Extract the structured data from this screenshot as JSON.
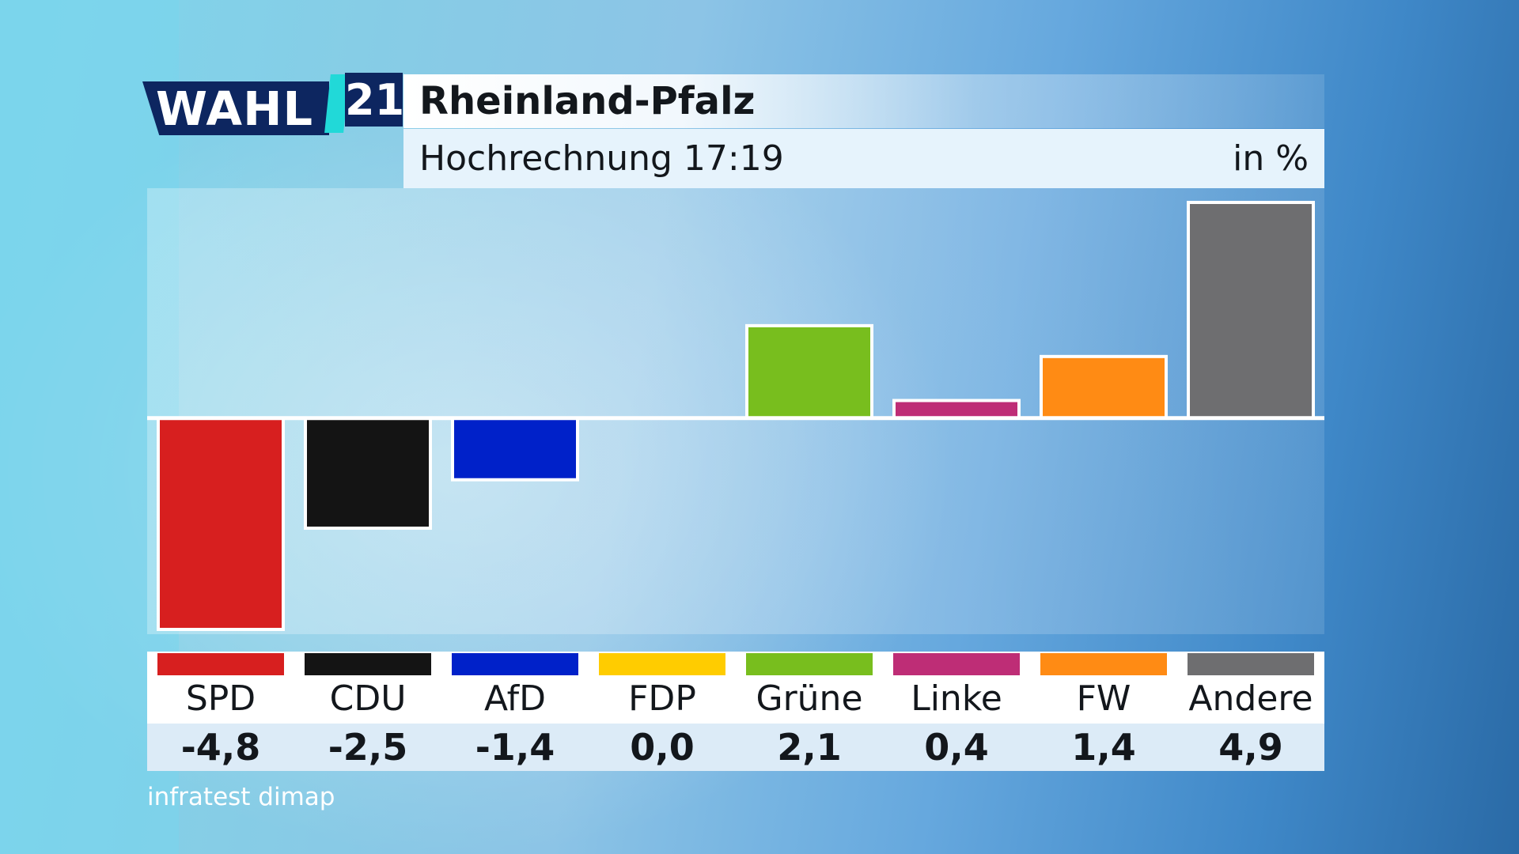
{
  "header": {
    "logo_text": "WAHL",
    "logo_year": "21",
    "title": "Rheinland-Pfalz",
    "subtitle": "Hochrechnung 17:19",
    "unit": "in %"
  },
  "source": "infratest dimap",
  "colors": {
    "logo_navy": "#0d2660",
    "logo_accent": "#21d9d8",
    "bar_border": "#ffffff",
    "baseline": "#ffffff"
  },
  "chart_data": {
    "type": "bar",
    "categories": [
      "SPD",
      "CDU",
      "AfD",
      "FDP",
      "Grüne",
      "Linke",
      "FW",
      "Andere"
    ],
    "values": [
      -4.8,
      -2.5,
      -1.4,
      0.0,
      2.1,
      0.4,
      1.4,
      4.9
    ],
    "value_labels": [
      "-4,8",
      "-2,5",
      "-1,4",
      "0,0",
      "2,1",
      "0,4",
      "1,4",
      "4,9"
    ],
    "colors": [
      "#d71f1f",
      "#141414",
      "#0021c9",
      "#ffcc00",
      "#78be1e",
      "#be2d76",
      "#ff8b14",
      "#6e6e70"
    ],
    "title": "Rheinland-Pfalz",
    "subtitle": "Hochrechnung 17:19",
    "unit": "in %",
    "xlabel": "",
    "ylabel": "",
    "ylim": [
      -4.8,
      4.9
    ],
    "grid": false,
    "legend": "bottom"
  }
}
